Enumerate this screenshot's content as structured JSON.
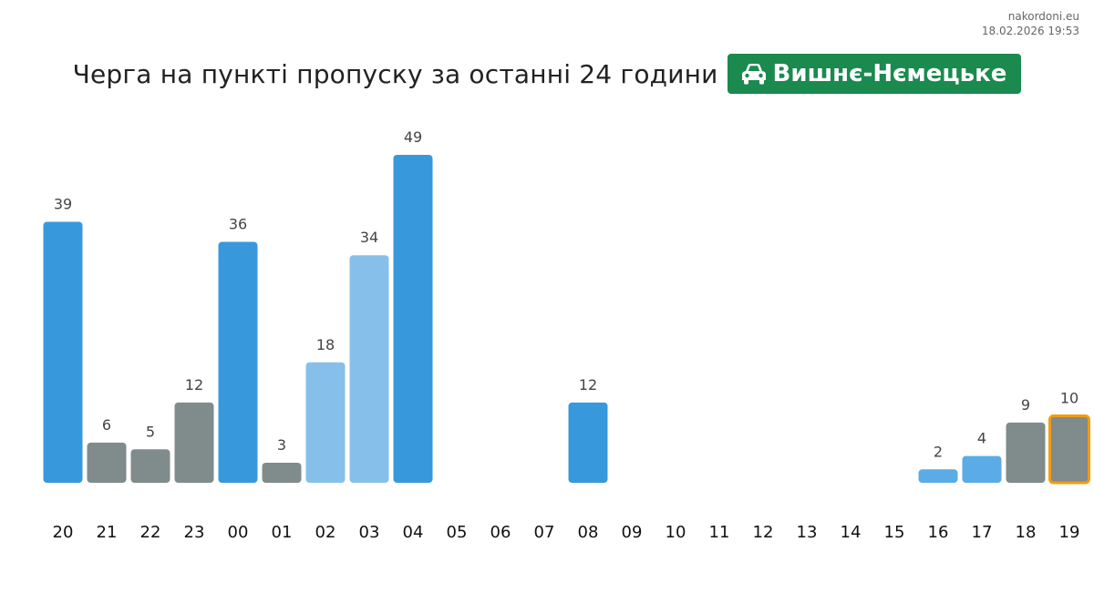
{
  "source": {
    "site": "nakordoni.eu",
    "timestamp": "18.02.2026 19:53"
  },
  "header": {
    "title": "Черга на пункті пропуску за останні 24 години",
    "badge_label": "Вишнє-Нємецьке",
    "badge_icon": "car-icon",
    "badge_color": "#1a8a4e"
  },
  "colors": {
    "dark_blue": "#3898dc",
    "medium_blue": "#5aabe6",
    "light_blue": "#86c0ea",
    "gray": "#808b8b",
    "highlight_border": "#f39c12"
  },
  "chart_data": {
    "type": "bar",
    "categories": [
      "20",
      "21",
      "22",
      "23",
      "00",
      "01",
      "02",
      "03",
      "04",
      "05",
      "06",
      "07",
      "08",
      "09",
      "10",
      "11",
      "12",
      "13",
      "14",
      "15",
      "16",
      "17",
      "18",
      "19"
    ],
    "values": [
      39,
      6,
      5,
      12,
      36,
      3,
      18,
      34,
      49,
      null,
      null,
      null,
      12,
      null,
      null,
      null,
      null,
      null,
      null,
      null,
      2,
      4,
      9,
      10
    ],
    "labels": [
      "39",
      "6",
      "5",
      "12",
      "36",
      "3",
      "18",
      "34",
      "49",
      "",
      "",
      "",
      "12",
      "",
      "",
      "",
      "",
      "",
      "",
      "",
      "2",
      "4",
      "9",
      "10"
    ],
    "bar_colors": [
      "dark_blue",
      "gray",
      "gray",
      "gray",
      "dark_blue",
      "gray",
      "light_blue",
      "light_blue",
      "dark_blue",
      "",
      "",
      "",
      "dark_blue",
      "",
      "",
      "",
      "",
      "",
      "",
      "",
      "medium_blue",
      "medium_blue",
      "gray",
      "gray"
    ],
    "highlighted": "19",
    "title": "Черга на пункті пропуску за останні 24 години",
    "xlabel": "",
    "ylabel": "",
    "ylim": [
      0,
      49
    ],
    "grid": false,
    "legend": "none"
  }
}
